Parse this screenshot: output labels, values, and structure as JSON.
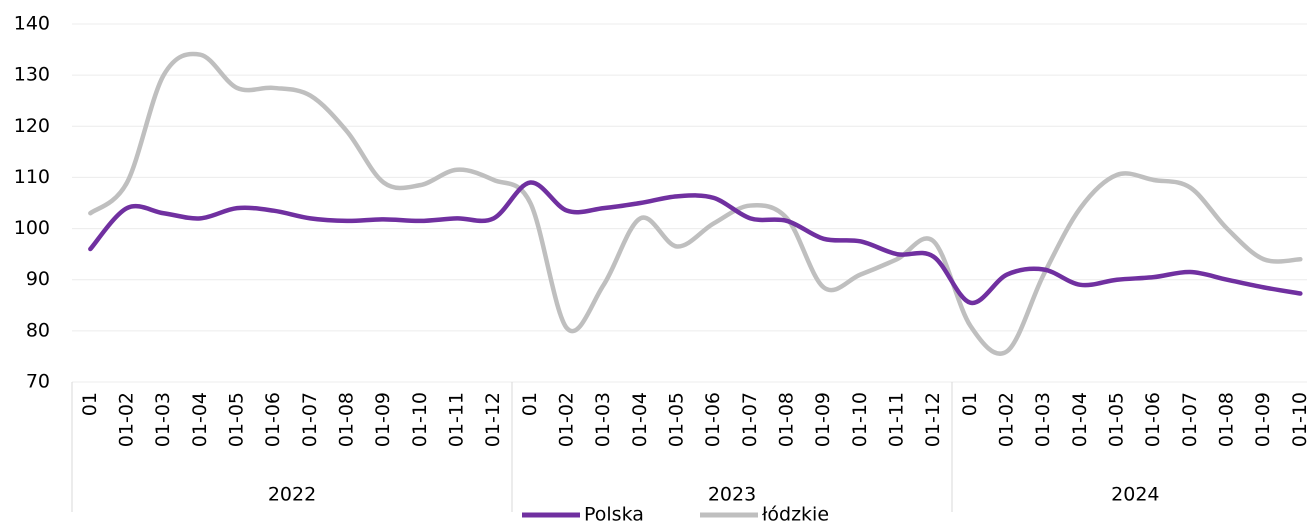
{
  "chart_data": {
    "type": "line",
    "category_groups": [
      {
        "name": "2022",
        "categories": [
          "01",
          "01-02",
          "01-03",
          "01-04",
          "01-05",
          "01-06",
          "01-07",
          "01-08",
          "01-09",
          "01-10",
          "01-11",
          "01-12"
        ]
      },
      {
        "name": "2023",
        "categories": [
          "01",
          "01-02",
          "01-03",
          "01-04",
          "01-05",
          "01-06",
          "01-07",
          "01-08",
          "01-09",
          "01-10",
          "01-11",
          "01-12"
        ]
      },
      {
        "name": "2024",
        "categories": [
          "01",
          "01-02",
          "01-03",
          "01-04",
          "01-05",
          "01-06",
          "01-07",
          "01-08",
          "01-09",
          "01-10"
        ]
      }
    ],
    "series": [
      {
        "name": "Polska",
        "color": "#7030a0",
        "values": [
          96,
          104,
          103,
          102,
          104,
          103.5,
          102,
          101.5,
          101.8,
          101.5,
          102,
          102,
          109,
          103.5,
          104,
          105,
          106.3,
          106,
          102,
          101.5,
          98,
          97.5,
          95,
          94.5,
          85.5,
          91,
          92,
          89,
          90,
          90.5,
          91.5,
          90,
          88.5,
          87.3
        ]
      },
      {
        "name": "łódzkie",
        "color": "#bfbfbf",
        "values": [
          103,
          109,
          130,
          134,
          127.5,
          127.5,
          126,
          119,
          109,
          108.5,
          111.5,
          109.5,
          105,
          80.5,
          89,
          102,
          96.5,
          101,
          104.5,
          102,
          88.5,
          91,
          94,
          97.5,
          81,
          76,
          91,
          104,
          110.5,
          109.5,
          108,
          100,
          94,
          94
        ]
      }
    ],
    "ylim": [
      70,
      140
    ],
    "yticks": [
      70,
      80,
      90,
      100,
      110,
      120,
      130,
      140
    ],
    "grid": true
  }
}
